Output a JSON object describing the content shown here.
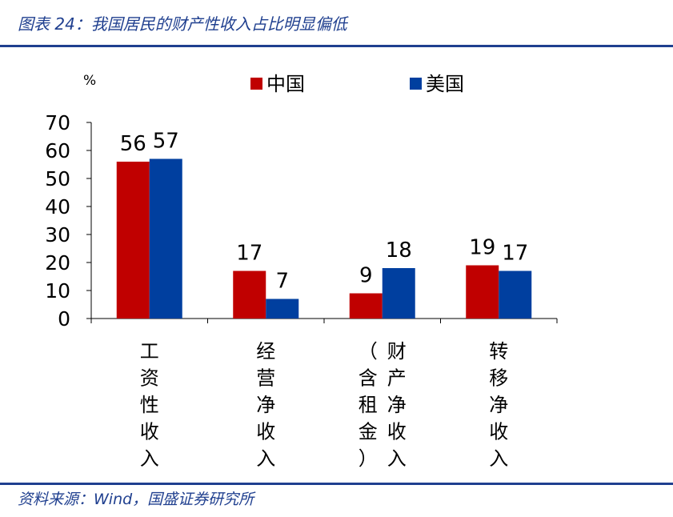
{
  "figure": {
    "title": "图表 24：我国居民的财产性收入占比明显偏低",
    "source": "资料来源：Wind，国盛证券研究所"
  },
  "colors": {
    "china": "#c00000",
    "usa": "#003f9f",
    "accent": "#1f3f8f"
  },
  "chart_data": {
    "type": "bar",
    "unit_label": "%",
    "categories": [
      "工资性收入",
      "经营净收入",
      "财产净收入（含租金）",
      "转移净收入"
    ],
    "category_lines": [
      [
        [
          "工",
          "资",
          "性",
          "收",
          "入"
        ]
      ],
      [
        [
          "经",
          "营",
          "净",
          "收",
          "入"
        ]
      ],
      [
        [
          "（",
          "含",
          "租",
          "金",
          "）"
        ],
        [
          "财",
          "产",
          "净",
          "收",
          "入"
        ]
      ],
      [
        [
          "转",
          "移",
          "净",
          "收",
          "入"
        ]
      ]
    ],
    "series": [
      {
        "name": "中国",
        "values": [
          56,
          17,
          9,
          19
        ]
      },
      {
        "name": "美国",
        "values": [
          57,
          7,
          18,
          17
        ]
      }
    ],
    "ylim": [
      0,
      70
    ],
    "yticks": [
      0,
      10,
      20,
      30,
      40,
      50,
      60,
      70
    ],
    "legend_position": "top",
    "grid": false
  }
}
